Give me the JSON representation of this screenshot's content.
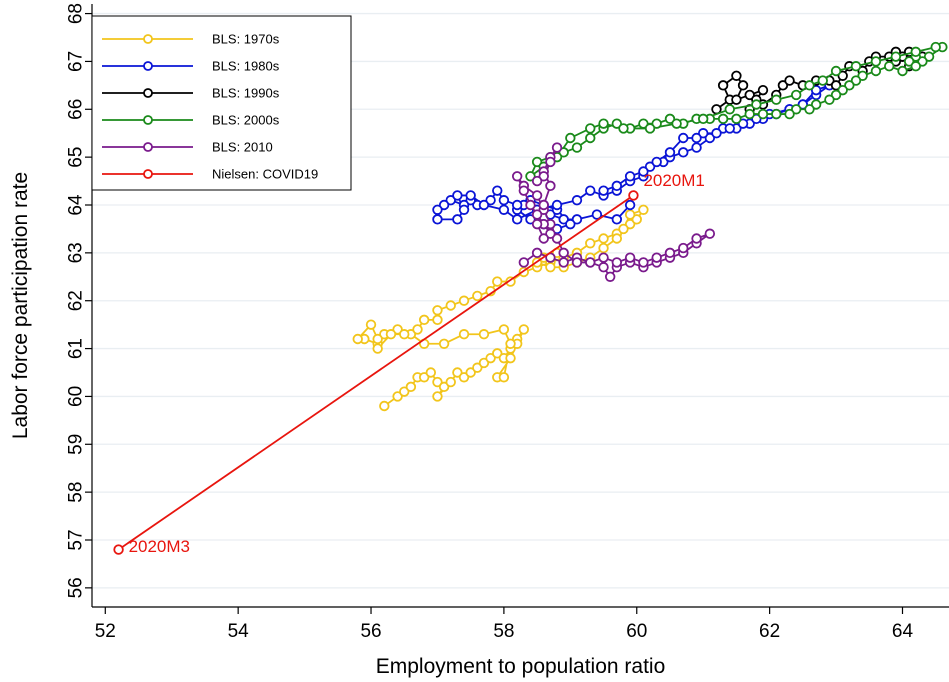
{
  "chart_data": {
    "type": "scatter",
    "title": "",
    "xlabel": "Employment to population ratio",
    "ylabel": "Labor force participation rate",
    "xlim": [
      51.8,
      64.7
    ],
    "ylim": [
      55.6,
      68.2
    ],
    "xticks": [
      "52",
      "54",
      "56",
      "58",
      "60",
      "62",
      "64"
    ],
    "yticks": [
      "56",
      "57",
      "58",
      "59",
      "60",
      "61",
      "62",
      "63",
      "64",
      "65",
      "66",
      "67",
      "68"
    ],
    "grid": "horizontal",
    "legend_position": "top-left",
    "series": [
      {
        "name": "BLS: 1970s",
        "color": "#f2c51b",
        "points": [
          [
            56.2,
            59.8
          ],
          [
            56.4,
            60.0
          ],
          [
            56.5,
            60.1
          ],
          [
            56.6,
            60.2
          ],
          [
            56.7,
            60.4
          ],
          [
            56.8,
            60.4
          ],
          [
            56.9,
            60.5
          ],
          [
            57.0,
            60.3
          ],
          [
            57.1,
            60.2
          ],
          [
            57.0,
            60.0
          ],
          [
            57.2,
            60.3
          ],
          [
            57.3,
            60.5
          ],
          [
            57.4,
            60.4
          ],
          [
            57.5,
            60.5
          ],
          [
            57.6,
            60.6
          ],
          [
            57.7,
            60.7
          ],
          [
            57.8,
            60.8
          ],
          [
            57.9,
            60.9
          ],
          [
            58.0,
            60.8
          ],
          [
            58.1,
            61.0
          ],
          [
            58.2,
            61.2
          ],
          [
            58.3,
            61.4
          ],
          [
            58.2,
            61.1
          ],
          [
            58.1,
            60.8
          ],
          [
            57.9,
            60.4
          ],
          [
            58.0,
            60.4
          ],
          [
            58.1,
            61.1
          ],
          [
            58.0,
            61.4
          ],
          [
            57.7,
            61.3
          ],
          [
            57.4,
            61.3
          ],
          [
            57.1,
            61.1
          ],
          [
            56.8,
            61.1
          ],
          [
            56.6,
            61.3
          ],
          [
            56.4,
            61.4
          ],
          [
            56.2,
            61.3
          ],
          [
            56.1,
            61.1
          ],
          [
            55.9,
            61.2
          ],
          [
            55.8,
            61.2
          ],
          [
            56.0,
            61.5
          ],
          [
            56.1,
            61.2
          ],
          [
            56.1,
            61.0
          ],
          [
            56.3,
            61.3
          ],
          [
            56.5,
            61.3
          ],
          [
            56.7,
            61.4
          ],
          [
            56.8,
            61.6
          ],
          [
            57.0,
            61.6
          ],
          [
            57.0,
            61.8
          ],
          [
            57.2,
            61.9
          ],
          [
            57.4,
            62.0
          ],
          [
            57.6,
            62.1
          ],
          [
            57.8,
            62.2
          ],
          [
            57.9,
            62.4
          ],
          [
            58.1,
            62.4
          ],
          [
            58.3,
            62.6
          ],
          [
            58.5,
            62.7
          ],
          [
            58.7,
            62.8
          ],
          [
            58.9,
            62.9
          ],
          [
            59.1,
            63.0
          ],
          [
            59.3,
            63.2
          ],
          [
            59.5,
            63.3
          ],
          [
            59.7,
            63.4
          ],
          [
            59.9,
            63.6
          ],
          [
            60.0,
            63.7
          ],
          [
            60.1,
            63.9
          ],
          [
            59.9,
            63.8
          ],
          [
            59.8,
            63.5
          ],
          [
            59.7,
            63.3
          ],
          [
            59.5,
            63.1
          ],
          [
            59.3,
            62.9
          ],
          [
            59.1,
            62.8
          ],
          [
            58.9,
            62.7
          ],
          [
            58.7,
            62.7
          ],
          [
            58.5,
            62.8
          ],
          [
            58.6,
            62.9
          ],
          [
            58.8,
            63.0
          ]
        ]
      },
      {
        "name": "BLS: 1980s",
        "color": "#0a14d6",
        "points": [
          [
            59.9,
            64.0
          ],
          [
            59.7,
            63.7
          ],
          [
            59.4,
            63.8
          ],
          [
            59.1,
            63.7
          ],
          [
            58.9,
            63.7
          ],
          [
            58.7,
            63.8
          ],
          [
            58.5,
            63.9
          ],
          [
            58.3,
            64.0
          ],
          [
            58.2,
            63.9
          ],
          [
            58.4,
            63.7
          ],
          [
            58.6,
            63.6
          ],
          [
            58.8,
            63.5
          ],
          [
            59.0,
            63.6
          ],
          [
            58.8,
            63.9
          ],
          [
            58.6,
            64.0
          ],
          [
            58.4,
            64.1
          ],
          [
            58.2,
            64.0
          ],
          [
            58.0,
            64.1
          ],
          [
            57.9,
            64.3
          ],
          [
            57.8,
            64.1
          ],
          [
            57.6,
            64.0
          ],
          [
            57.5,
            64.1
          ],
          [
            57.4,
            64.0
          ],
          [
            57.2,
            64.1
          ],
          [
            57.1,
            64.0
          ],
          [
            57.0,
            63.9
          ],
          [
            57.0,
            63.7
          ],
          [
            57.3,
            63.7
          ],
          [
            57.4,
            63.9
          ],
          [
            57.3,
            64.2
          ],
          [
            57.5,
            64.2
          ],
          [
            57.7,
            64.0
          ],
          [
            58.0,
            63.9
          ],
          [
            58.2,
            63.7
          ],
          [
            58.5,
            63.9
          ],
          [
            58.8,
            64.0
          ],
          [
            59.1,
            64.1
          ],
          [
            59.3,
            64.3
          ],
          [
            59.5,
            64.2
          ],
          [
            59.7,
            64.3
          ],
          [
            59.9,
            64.5
          ],
          [
            60.1,
            64.6
          ],
          [
            60.2,
            64.8
          ],
          [
            60.4,
            64.9
          ],
          [
            60.5,
            65.0
          ],
          [
            60.7,
            65.1
          ],
          [
            60.9,
            65.2
          ],
          [
            61.1,
            65.4
          ],
          [
            61.3,
            65.6
          ],
          [
            61.5,
            65.6
          ],
          [
            61.7,
            65.7
          ],
          [
            61.9,
            65.8
          ],
          [
            62.1,
            65.9
          ],
          [
            62.3,
            66.0
          ],
          [
            62.5,
            66.1
          ],
          [
            62.7,
            66.3
          ],
          [
            62.9,
            66.5
          ],
          [
            62.7,
            66.4
          ],
          [
            62.5,
            66.1
          ],
          [
            62.3,
            66.0
          ],
          [
            62.0,
            65.9
          ],
          [
            61.8,
            65.8
          ],
          [
            61.6,
            65.7
          ],
          [
            61.4,
            65.6
          ],
          [
            61.2,
            65.5
          ],
          [
            61.0,
            65.5
          ],
          [
            60.9,
            65.4
          ],
          [
            60.7,
            65.4
          ],
          [
            60.5,
            65.1
          ],
          [
            60.3,
            64.9
          ],
          [
            60.1,
            64.7
          ],
          [
            59.9,
            64.6
          ],
          [
            59.7,
            64.4
          ],
          [
            59.5,
            64.3
          ]
        ]
      },
      {
        "name": "BLS: 1990s",
        "color": "#000000",
        "points": [
          [
            61.2,
            66.0
          ],
          [
            61.4,
            66.2
          ],
          [
            61.3,
            66.5
          ],
          [
            61.5,
            66.7
          ],
          [
            61.6,
            66.5
          ],
          [
            61.5,
            66.2
          ],
          [
            61.7,
            66.3
          ],
          [
            61.9,
            66.4
          ],
          [
            61.8,
            66.2
          ],
          [
            61.7,
            66.0
          ],
          [
            61.9,
            66.1
          ],
          [
            62.1,
            66.3
          ],
          [
            62.2,
            66.5
          ],
          [
            62.3,
            66.6
          ],
          [
            62.5,
            66.5
          ],
          [
            62.7,
            66.6
          ],
          [
            62.9,
            66.6
          ],
          [
            63.0,
            66.5
          ],
          [
            63.1,
            66.7
          ],
          [
            63.2,
            66.9
          ],
          [
            63.4,
            66.8
          ],
          [
            63.5,
            67.0
          ],
          [
            63.6,
            67.1
          ],
          [
            63.8,
            67.1
          ],
          [
            63.9,
            67.2
          ],
          [
            64.0,
            67.1
          ],
          [
            64.1,
            67.2
          ],
          [
            64.2,
            67.0
          ],
          [
            64.3,
            67.1
          ],
          [
            64.1,
            66.9
          ],
          [
            64.0,
            67.1
          ],
          [
            63.9,
            67.0
          ]
        ]
      },
      {
        "name": "BLS: 2000s",
        "color": "#1a8a1a",
        "points": [
          [
            64.6,
            67.3
          ],
          [
            64.4,
            67.1
          ],
          [
            64.3,
            67.0
          ],
          [
            64.2,
            67.1
          ],
          [
            64.1,
            67.0
          ],
          [
            64.2,
            66.9
          ],
          [
            64.0,
            66.8
          ],
          [
            63.8,
            66.9
          ],
          [
            63.6,
            66.8
          ],
          [
            63.4,
            66.7
          ],
          [
            63.3,
            66.6
          ],
          [
            63.2,
            66.5
          ],
          [
            63.1,
            66.4
          ],
          [
            63.0,
            66.3
          ],
          [
            62.9,
            66.2
          ],
          [
            62.7,
            66.1
          ],
          [
            62.6,
            66.0
          ],
          [
            62.4,
            66.0
          ],
          [
            62.3,
            65.9
          ],
          [
            62.1,
            65.9
          ],
          [
            61.9,
            65.9
          ],
          [
            61.7,
            65.9
          ],
          [
            61.5,
            65.8
          ],
          [
            61.3,
            65.8
          ],
          [
            61.1,
            65.8
          ],
          [
            60.9,
            65.8
          ],
          [
            60.7,
            65.7
          ],
          [
            60.5,
            65.8
          ],
          [
            60.3,
            65.7
          ],
          [
            60.1,
            65.7
          ],
          [
            59.9,
            65.6
          ],
          [
            59.7,
            65.7
          ],
          [
            59.5,
            65.6
          ],
          [
            59.3,
            65.4
          ],
          [
            59.1,
            65.2
          ],
          [
            58.9,
            65.1
          ],
          [
            58.7,
            65.0
          ],
          [
            58.5,
            64.9
          ],
          [
            58.4,
            64.6
          ],
          [
            58.6,
            64.8
          ],
          [
            58.8,
            65.0
          ],
          [
            59.0,
            65.4
          ],
          [
            59.3,
            65.6
          ],
          [
            59.5,
            65.7
          ],
          [
            59.8,
            65.6
          ],
          [
            60.2,
            65.6
          ],
          [
            60.6,
            65.7
          ],
          [
            61.0,
            65.8
          ],
          [
            61.4,
            66.0
          ],
          [
            61.8,
            66.1
          ],
          [
            62.1,
            66.2
          ],
          [
            62.4,
            66.3
          ],
          [
            62.6,
            66.5
          ],
          [
            62.8,
            66.6
          ],
          [
            63.0,
            66.8
          ],
          [
            63.3,
            66.9
          ],
          [
            63.6,
            67.0
          ],
          [
            63.9,
            67.1
          ],
          [
            64.2,
            67.2
          ],
          [
            64.5,
            67.3
          ]
        ]
      },
      {
        "name": "BLS: 2010",
        "color": "#7a1a8c",
        "points": [
          [
            58.3,
            62.8
          ],
          [
            58.5,
            63.0
          ],
          [
            58.7,
            62.9
          ],
          [
            58.9,
            62.8
          ],
          [
            59.1,
            62.9
          ],
          [
            59.3,
            62.8
          ],
          [
            59.5,
            62.7
          ],
          [
            59.6,
            62.5
          ],
          [
            59.7,
            62.7
          ],
          [
            59.9,
            62.8
          ],
          [
            60.1,
            62.7
          ],
          [
            60.3,
            62.8
          ],
          [
            60.5,
            62.9
          ],
          [
            60.7,
            63.0
          ],
          [
            60.9,
            63.2
          ],
          [
            61.1,
            63.4
          ],
          [
            60.9,
            63.3
          ],
          [
            60.7,
            63.1
          ],
          [
            60.5,
            63.0
          ],
          [
            60.3,
            62.9
          ],
          [
            60.1,
            62.8
          ],
          [
            59.9,
            62.9
          ],
          [
            59.7,
            62.8
          ],
          [
            59.5,
            62.9
          ],
          [
            59.3,
            62.8
          ],
          [
            59.1,
            62.8
          ],
          [
            58.9,
            63.0
          ],
          [
            58.8,
            63.3
          ],
          [
            58.7,
            63.6
          ],
          [
            58.6,
            63.9
          ],
          [
            58.5,
            64.2
          ],
          [
            58.3,
            64.4
          ],
          [
            58.2,
            64.6
          ],
          [
            58.3,
            64.3
          ],
          [
            58.4,
            64.0
          ],
          [
            58.5,
            63.8
          ],
          [
            58.6,
            63.6
          ],
          [
            58.7,
            63.4
          ],
          [
            58.6,
            63.3
          ],
          [
            58.5,
            63.6
          ],
          [
            58.6,
            64.0
          ],
          [
            58.7,
            64.4
          ],
          [
            58.6,
            64.7
          ],
          [
            58.7,
            65.0
          ],
          [
            58.8,
            65.2
          ],
          [
            58.7,
            64.9
          ],
          [
            58.6,
            64.6
          ],
          [
            58.5,
            64.5
          ]
        ]
      },
      {
        "name": "Nielsen: COVID19",
        "color": "#e8150e",
        "points": [
          [
            59.95,
            64.2
          ],
          [
            52.2,
            56.8
          ]
        ]
      }
    ],
    "annotations": [
      {
        "text": "2020M1",
        "x": 59.95,
        "y": 64.2
      },
      {
        "text": "2020M3",
        "x": 52.2,
        "y": 56.8
      }
    ]
  }
}
